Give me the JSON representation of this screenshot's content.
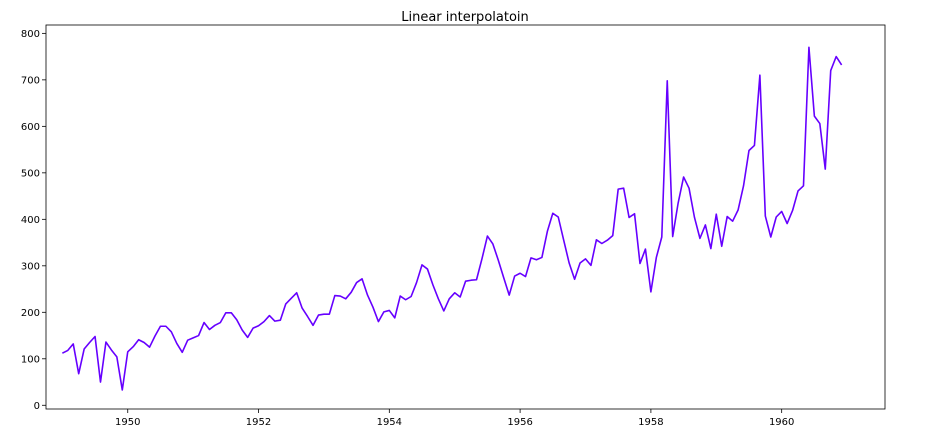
{
  "chart_data": {
    "type": "line",
    "title": "Linear interpolatoin",
    "xlabel": "",
    "ylabel": "",
    "xlim": [
      1948.75,
      1961.58
    ],
    "ylim": [
      -8,
      818
    ],
    "grid": false,
    "legend": null,
    "x_ticks": [
      1950,
      1952,
      1954,
      1956,
      1958,
      1960
    ],
    "y_ticks": [
      0,
      100,
      200,
      300,
      400,
      500,
      600,
      700,
      800
    ],
    "series": [
      {
        "color": "#6600ff",
        "x_start": 1949.0,
        "x_step_months": 1,
        "x": [
          "1949-01",
          "1949-02",
          "1949-03",
          "1949-04",
          "1949-05",
          "1949-06",
          "1949-07",
          "1949-08",
          "1949-09",
          "1949-10",
          "1949-11",
          "1949-12",
          "1950-01",
          "1950-02",
          "1950-03",
          "1950-04",
          "1950-05",
          "1950-06",
          "1950-07",
          "1950-08",
          "1950-09",
          "1950-10",
          "1950-11",
          "1950-12",
          "1951-01",
          "1951-02",
          "1951-03",
          "1951-04",
          "1951-05",
          "1951-06",
          "1951-07",
          "1951-08",
          "1951-09",
          "1951-10",
          "1951-11",
          "1951-12",
          "1952-01",
          "1952-02",
          "1952-03",
          "1952-04",
          "1952-05",
          "1952-06",
          "1952-07",
          "1952-08",
          "1952-09",
          "1952-10",
          "1952-11",
          "1952-12",
          "1953-01",
          "1953-02",
          "1953-03",
          "1953-04",
          "1953-05",
          "1953-06",
          "1953-07",
          "1953-08",
          "1953-09",
          "1953-10",
          "1953-11",
          "1953-12",
          "1954-01",
          "1954-02",
          "1954-03",
          "1954-04",
          "1954-05",
          "1954-06",
          "1954-07",
          "1954-08",
          "1954-09",
          "1954-10",
          "1954-11",
          "1954-12",
          "1955-01",
          "1955-02",
          "1955-03",
          "1955-04",
          "1955-05",
          "1955-06",
          "1955-07",
          "1955-08",
          "1955-09",
          "1955-10",
          "1955-11",
          "1955-12",
          "1956-01",
          "1956-02",
          "1956-03",
          "1956-04",
          "1956-05",
          "1956-06",
          "1956-07",
          "1956-08",
          "1956-09",
          "1956-10",
          "1956-11",
          "1956-12",
          "1957-01",
          "1957-02",
          "1957-03",
          "1957-04",
          "1957-05",
          "1957-06",
          "1957-07",
          "1957-08",
          "1957-09",
          "1957-10",
          "1957-11",
          "1957-12",
          "1958-01",
          "1958-02",
          "1958-03",
          "1958-04",
          "1958-05",
          "1958-06",
          "1958-07",
          "1958-08",
          "1958-09",
          "1958-10",
          "1958-11",
          "1958-12",
          "1959-01",
          "1959-02",
          "1959-03",
          "1959-04",
          "1959-05",
          "1959-06",
          "1959-07",
          "1959-08",
          "1959-09",
          "1959-10",
          "1959-11",
          "1959-12",
          "1960-01",
          "1960-02",
          "1960-03",
          "1960-04",
          "1960-05",
          "1960-06",
          "1960-07",
          "1960-08",
          "1960-09",
          "1960-10",
          "1960-11",
          "1960-12"
        ],
        "values": [
          112,
          118,
          132,
          68,
          121,
          135,
          148,
          50,
          136,
          119,
          104,
          33,
          115,
          126,
          141,
          135,
          125,
          149,
          170,
          170,
          158,
          133,
          114,
          140,
          145,
          150,
          178,
          163,
          172,
          178,
          199,
          199,
          184,
          162,
          146,
          166,
          171,
          180,
          193,
          181,
          183,
          218,
          230,
          242,
          209,
          191,
          172,
          194,
          196,
          196,
          236,
          235,
          229,
          243,
          264,
          272,
          237,
          211,
          180,
          201,
          204,
          188,
          235,
          227,
          234,
          264,
          302,
          293,
          259,
          229,
          203,
          229,
          242,
          233,
          267,
          269,
          270,
          315,
          364,
          347,
          312,
          274,
          237,
          278,
          284,
          277,
          317,
          313,
          318,
          374,
          413,
          405,
          355,
          306,
          271,
          306,
          315,
          301,
          356,
          348,
          355,
          365,
          465,
          467,
          404,
          412,
          305,
          336,
          244,
          318,
          362,
          698,
          363,
          435,
          491,
          467,
          404,
          359,
          388,
          337,
          411,
          342,
          406,
          396,
          420,
          472,
          548,
          559,
          710,
          407,
          362,
          405,
          417,
          391,
          419,
          461,
          472,
          770,
          622,
          606,
          508,
          720,
          750,
          732
        ]
      }
    ]
  }
}
